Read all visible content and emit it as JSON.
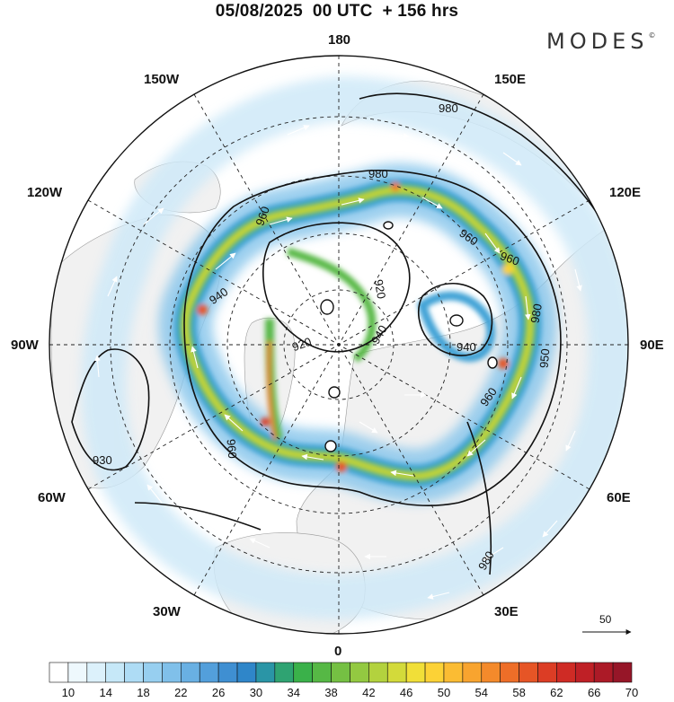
{
  "header": {
    "title": "05/08/2025  00 UTC  + 156 hrs",
    "logo": "MODES",
    "logo_mark": "©"
  },
  "map": {
    "projection": "north-polar-stereographic",
    "longitude_labels": {
      "top": "180",
      "bottom": "0",
      "left": "90W",
      "right": "90E",
      "upper_left": "150W",
      "upper_right": "150E",
      "mid_upper_left": "120W",
      "mid_upper_right": "120E",
      "mid_lower_left": "60W",
      "mid_lower_right": "60E",
      "lower_left": "30W",
      "lower_right": "30E"
    },
    "contour_labels": [
      "980",
      "980",
      "960",
      "960",
      "940",
      "920",
      "940",
      "920",
      "940",
      "960",
      "950",
      "960",
      "980",
      "960",
      "930",
      "980"
    ],
    "reference_vector": "50"
  },
  "colorbar": {
    "colors": [
      "#ffffff",
      "#eef8fd",
      "#dcf1fb",
      "#c6e8f8",
      "#aedcf5",
      "#97cff0",
      "#80c0ea",
      "#69b0e3",
      "#539fdb",
      "#3f8fd2",
      "#2f86c9",
      "#2a95a6",
      "#2fa372",
      "#3ab14a",
      "#56b845",
      "#75c043",
      "#93c941",
      "#b3d23e",
      "#d3da3a",
      "#f1df38",
      "#fcd236",
      "#fbbc33",
      "#f8a42f",
      "#f48a2b",
      "#ee6e28",
      "#e65526",
      "#dc3d25",
      "#cf2b25",
      "#bf2026",
      "#ac1a27",
      "#961628"
    ],
    "labels": [
      "10",
      "14",
      "18",
      "22",
      "26",
      "30",
      "34",
      "38",
      "42",
      "46",
      "50",
      "54",
      "58",
      "62",
      "66",
      "70"
    ]
  }
}
